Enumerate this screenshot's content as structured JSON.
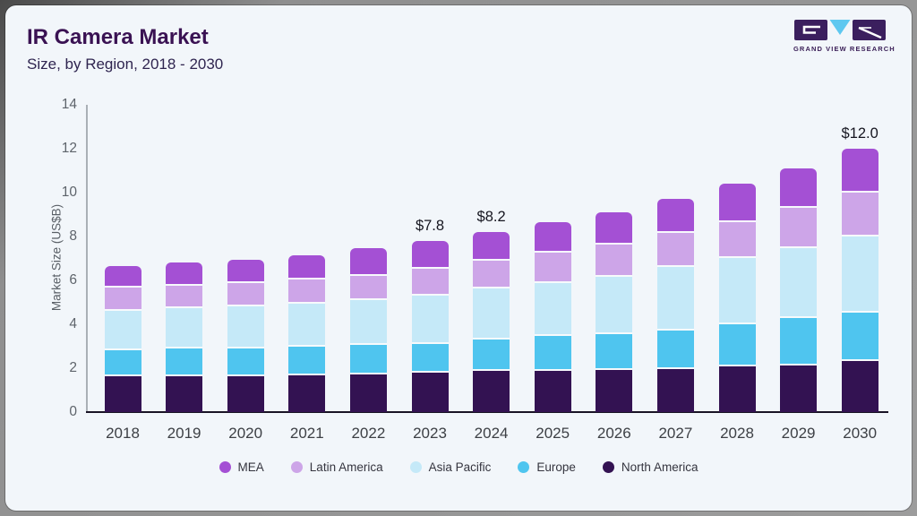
{
  "header": {
    "title": "IR Camera Market",
    "subtitle": "Size, by Region, 2018 - 2030"
  },
  "logo": {
    "name": "Grand View Research",
    "text": "GRAND VIEW RESEARCH",
    "block_color": "#3b1f5e",
    "triangle_color": "#5ec8f0"
  },
  "chart_data": {
    "type": "bar",
    "stacked": true,
    "title": "IR Camera Market Size, by Region, 2018 - 2030",
    "xlabel": "",
    "ylabel": "Market Size (US$B)",
    "ylim": [
      0,
      14
    ],
    "yticks": [
      0,
      2,
      4,
      6,
      8,
      10,
      12,
      14
    ],
    "grid": false,
    "legend_position": "bottom",
    "categories": [
      "2018",
      "2019",
      "2020",
      "2021",
      "2022",
      "2023",
      "2024",
      "2025",
      "2026",
      "2027",
      "2028",
      "2029",
      "2030"
    ],
    "series": [
      {
        "name": "North America",
        "color": "#331252",
        "values": [
          1.7,
          1.7,
          1.7,
          1.75,
          1.8,
          1.88,
          1.95,
          1.95,
          2.0,
          2.05,
          2.15,
          2.2,
          2.4
        ]
      },
      {
        "name": "Europe",
        "color": "#4fc5ef",
        "values": [
          1.2,
          1.27,
          1.3,
          1.3,
          1.33,
          1.32,
          1.45,
          1.6,
          1.65,
          1.75,
          1.95,
          2.15,
          2.2
        ]
      },
      {
        "name": "Asia Pacific",
        "color": "#c5e9f8",
        "values": [
          1.8,
          1.86,
          1.9,
          1.95,
          2.07,
          2.2,
          2.3,
          2.4,
          2.6,
          2.9,
          3.0,
          3.2,
          3.5
        ]
      },
      {
        "name": "Latin America",
        "color": "#cda5e8",
        "values": [
          1.05,
          1.02,
          1.05,
          1.1,
          1.1,
          1.2,
          1.3,
          1.4,
          1.45,
          1.55,
          1.65,
          1.85,
          2.0
        ]
      },
      {
        "name": "MEA",
        "color": "#a450d4",
        "values": [
          0.9,
          0.95,
          1.0,
          1.05,
          1.15,
          1.2,
          1.2,
          1.3,
          1.4,
          1.45,
          1.65,
          1.7,
          1.9
        ]
      }
    ],
    "totals": [
      6.65,
      6.8,
      6.95,
      7.15,
      7.45,
      7.8,
      8.2,
      8.65,
      9.1,
      9.7,
      10.4,
      11.1,
      12.0
    ],
    "annotations": [
      {
        "category": "2023",
        "label": "$7.8"
      },
      {
        "category": "2024",
        "label": "$8.2"
      },
      {
        "category": "2030",
        "label": "$12.0"
      }
    ],
    "legend": [
      {
        "label": "MEA",
        "color": "#a450d4"
      },
      {
        "label": "Latin America",
        "color": "#cda5e8"
      },
      {
        "label": "Asia Pacific",
        "color": "#c5e9f8"
      },
      {
        "label": "Europe",
        "color": "#4fc5ef"
      },
      {
        "label": "North America",
        "color": "#331252"
      }
    ]
  }
}
